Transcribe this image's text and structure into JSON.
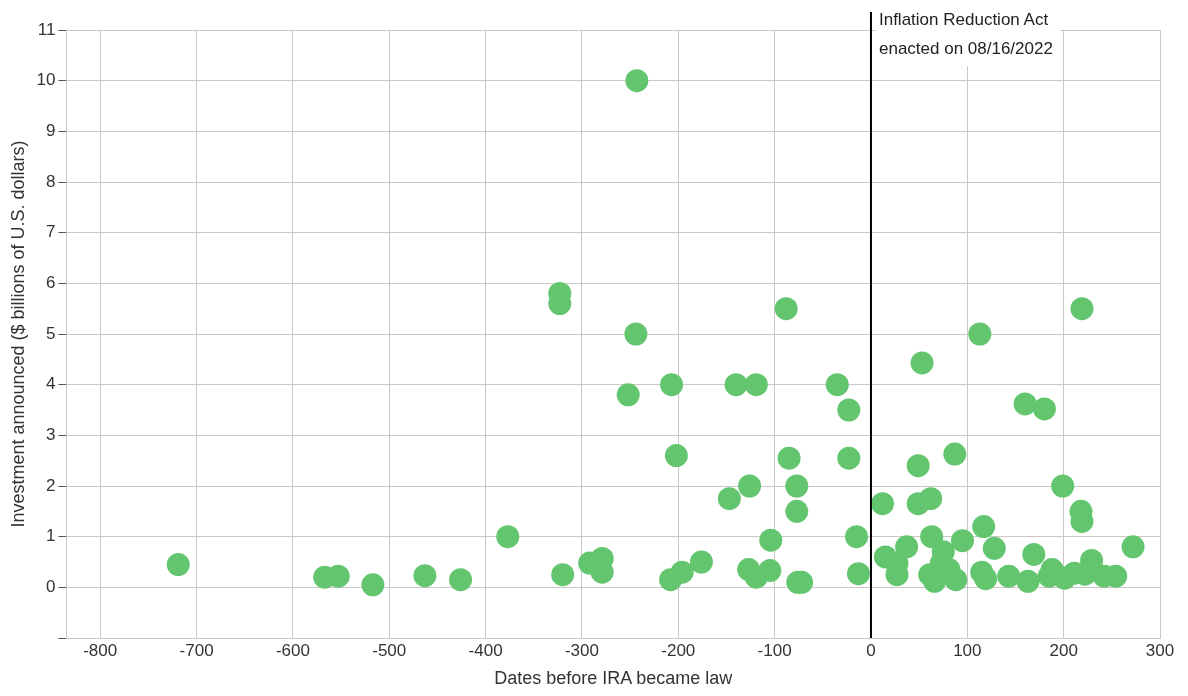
{
  "chart_data": {
    "type": "scatter",
    "xlabel": "Dates before IRA became law",
    "ylabel": "Investment announced ($ billions of U.S. dollars)",
    "xlim": [
      -835,
      300
    ],
    "xticks": [
      -800,
      -700,
      -600,
      -500,
      -400,
      -300,
      -200,
      -100,
      0,
      100,
      200,
      300
    ],
    "ylim": [
      -1,
      11
    ],
    "yticks": [
      {
        "value": -1,
        "label": null
      },
      0,
      1,
      2,
      3,
      4,
      5,
      6,
      7,
      8,
      9,
      10,
      11
    ],
    "grid": true,
    "legend": false,
    "marker": "circle",
    "ref_lines": [
      {
        "axis": "x",
        "value": 0,
        "label": "Inflation Reduction Act enacted on 08/16/2022",
        "color": "#000000"
      }
    ],
    "series": [
      {
        "color": "#63c66f",
        "x": [
          -719,
          -567,
          -553,
          -517,
          -463,
          -426,
          -377,
          -323,
          -323,
          -320,
          -292,
          -279,
          -279,
          -243,
          -244,
          -252,
          -207,
          -202,
          -208,
          -196,
          -176,
          -147,
          -126,
          -140,
          -119,
          -88,
          -85,
          -77,
          -77,
          -104,
          -127,
          -119,
          -105,
          -76,
          -72,
          -35,
          -23,
          -23,
          -15,
          -13,
          12,
          15,
          27,
          37,
          27,
          49,
          53,
          49,
          62,
          87,
          113,
          61,
          66,
          63,
          73,
          75,
          88,
          81,
          95,
          117,
          128,
          115,
          119,
          160,
          180,
          199,
          219,
          218,
          219,
          169,
          143,
          163,
          185,
          201,
          188,
          229,
          222,
          242,
          254,
          272,
          211
        ],
        "values": [
          0.45,
          0.2,
          0.22,
          0.05,
          0.23,
          0.15,
          1.0,
          5.8,
          5.6,
          0.25,
          0.48,
          0.57,
          0.3,
          10.0,
          5.0,
          3.8,
          4.0,
          2.6,
          0.15,
          0.3,
          0.5,
          1.75,
          2.0,
          4.0,
          4.0,
          5.5,
          2.55,
          2.0,
          1.5,
          0.93,
          0.35,
          0.2,
          0.33,
          0.1,
          0.1,
          4.0,
          3.5,
          2.55,
          1.0,
          0.27,
          1.65,
          0.6,
          0.47,
          0.8,
          0.25,
          2.4,
          4.43,
          1.65,
          1.75,
          2.63,
          5.0,
          0.25,
          0.12,
          1.0,
          0.48,
          0.7,
          0.15,
          0.35,
          0.92,
          1.2,
          0.77,
          0.3,
          0.17,
          3.62,
          3.52,
          2.0,
          5.5,
          1.5,
          1.3,
          0.65,
          0.22,
          0.12,
          0.22,
          0.18,
          0.35,
          0.53,
          0.26,
          0.22,
          0.22,
          0.8,
          0.28
        ]
      }
    ]
  }
}
